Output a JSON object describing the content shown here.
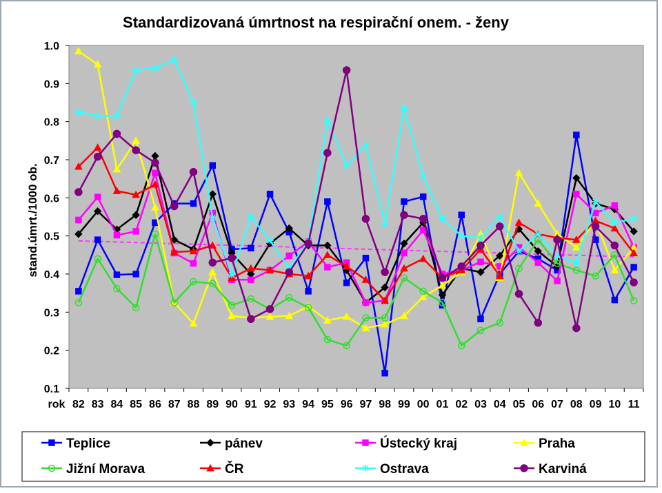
{
  "chart_data": {
    "type": "line",
    "title": "Standardizovaná úmrtnost na respirační onem. - ženy",
    "xlabel": "rok",
    "ylabel": "stand.úmrt./1000 ob.",
    "ylim": [
      0.1,
      1.0
    ],
    "yticks": [
      "0.1",
      "0.2",
      "0.3",
      "0.4",
      "0.5",
      "0.6",
      "0.7",
      "0.8",
      "0.9",
      "1.0"
    ],
    "grid": false,
    "legend_position": "bottom",
    "categories": [
      "82",
      "83",
      "84",
      "85",
      "86",
      "87",
      "88",
      "89",
      "90",
      "91",
      "92",
      "93",
      "94",
      "95",
      "96",
      "97",
      "98",
      "99",
      "00",
      "01",
      "02",
      "03",
      "04",
      "05",
      "06",
      "07",
      "08",
      "09",
      "10",
      "11"
    ],
    "series": [
      {
        "name": "Teplice",
        "color": "#0000ff",
        "marker": "square",
        "filled": true,
        "values": [
          0.355,
          0.49,
          0.398,
          0.4,
          0.535,
          0.585,
          0.585,
          0.685,
          0.465,
          0.468,
          0.61,
          0.51,
          0.355,
          0.59,
          0.377,
          0.442,
          0.14,
          0.59,
          0.603,
          0.318,
          0.555,
          0.282,
          0.4,
          0.46,
          0.44,
          0.41,
          0.765,
          0.49,
          0.332,
          0.418
        ]
      },
      {
        "name": "pánev",
        "color": "#000000",
        "marker": "diamond",
        "filled": true,
        "values": [
          0.505,
          0.565,
          0.517,
          0.555,
          0.71,
          0.49,
          0.465,
          0.61,
          0.455,
          0.4,
          0.48,
          0.52,
          0.475,
          0.475,
          0.41,
          0.325,
          0.365,
          0.48,
          0.535,
          0.345,
          0.415,
          0.405,
          0.448,
          0.518,
          0.46,
          0.42,
          0.652,
          0.585,
          0.57,
          0.512
        ]
      },
      {
        "name": "Ústecký kraj",
        "color": "#ff00ff",
        "marker": "square",
        "filled": true,
        "values": [
          0.542,
          0.602,
          0.502,
          0.512,
          0.665,
          0.455,
          0.428,
          0.56,
          0.385,
          0.385,
          0.41,
          0.448,
          0.485,
          0.418,
          0.43,
          0.325,
          0.33,
          0.455,
          0.515,
          0.4,
          0.41,
          0.432,
          0.42,
          0.47,
          0.43,
          0.382,
          0.61,
          0.56,
          0.58,
          0.47
        ]
      },
      {
        "name": "Praha",
        "color": "#ffff00",
        "marker": "triangle",
        "filled": true,
        "values": [
          0.985,
          0.95,
          0.675,
          0.75,
          0.575,
          0.325,
          0.27,
          0.405,
          0.29,
          0.285,
          0.288,
          0.29,
          0.315,
          0.278,
          0.288,
          0.258,
          0.268,
          0.29,
          0.34,
          0.37,
          0.405,
          0.505,
          0.39,
          0.665,
          0.585,
          0.505,
          0.47,
          0.54,
          0.41,
          0.47
        ]
      },
      {
        "name": "Jižní Morava",
        "color": "#33dd33",
        "marker": "circle",
        "filled": false,
        "values": [
          0.325,
          0.44,
          0.362,
          0.312,
          0.505,
          0.325,
          0.38,
          0.375,
          0.318,
          0.335,
          0.308,
          0.338,
          0.312,
          0.228,
          0.212,
          0.285,
          0.285,
          0.39,
          0.355,
          0.325,
          0.212,
          0.252,
          0.272,
          0.415,
          0.49,
          0.428,
          0.41,
          0.395,
          0.45,
          0.33
        ]
      },
      {
        "name": "ČR",
        "color": "#ff0000",
        "marker": "triangle",
        "filled": true,
        "values": [
          0.682,
          0.732,
          0.618,
          0.608,
          0.635,
          0.458,
          0.46,
          0.475,
          0.39,
          0.415,
          0.41,
          0.4,
          0.395,
          0.45,
          0.42,
          0.385,
          0.33,
          0.415,
          0.44,
          0.39,
          0.41,
          0.465,
          0.395,
          0.535,
          0.505,
          0.495,
          0.49,
          0.54,
          0.52,
          0.455
        ]
      },
      {
        "name": "Ostrava",
        "color": "#33ffff",
        "marker": "star",
        "filled": false,
        "values": [
          0.825,
          0.815,
          0.815,
          0.935,
          0.94,
          0.962,
          0.85,
          0.548,
          0.398,
          0.55,
          0.488,
          0.415,
          0.485,
          0.805,
          0.685,
          0.738,
          0.532,
          0.835,
          0.658,
          0.545,
          0.5,
          0.495,
          0.55,
          0.46,
          0.505,
          0.448,
          0.43,
          0.59,
          0.535,
          0.545
        ]
      },
      {
        "name": "Karviná",
        "color": "#800080",
        "marker": "circle",
        "filled": true,
        "values": [
          0.615,
          0.708,
          0.768,
          0.725,
          0.692,
          0.578,
          0.668,
          0.43,
          0.442,
          0.282,
          0.308,
          0.405,
          0.48,
          0.718,
          0.935,
          0.545,
          0.405,
          0.555,
          0.545,
          0.39,
          0.42,
          0.475,
          0.525,
          0.348,
          0.272,
          0.49,
          0.258,
          0.525,
          0.475,
          0.378
        ]
      }
    ],
    "trendline": {
      "color": "#ff33ff",
      "style": "dashed",
      "start": 0.487,
      "end": 0.445
    }
  }
}
